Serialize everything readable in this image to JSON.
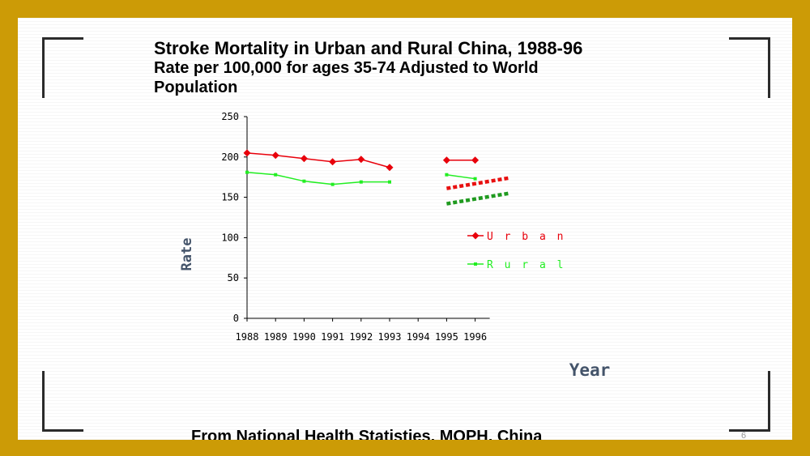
{
  "title": "Stroke Mortality in Urban and Rural China, 1988-96",
  "subtitle_line1": "Rate per 100,000 for ages 35-74 Adjusted to World",
  "subtitle_line2": "Population",
  "source": "From National Health Statisties, MOPH, China",
  "page_number": "6",
  "colors": {
    "frame": "#cc9b06",
    "urban": "#e8000b",
    "rural": "#22ee22",
    "urban_trend": "#e81010",
    "rural_trend": "#1f9a1f"
  },
  "chart_data": {
    "type": "line",
    "title": "Stroke Mortality in Urban and Rural China, 1988-96",
    "xlabel": "Year",
    "ylabel": "Rate",
    "ylim": [
      0,
      250
    ],
    "yticks": [
      0,
      50,
      100,
      150,
      200,
      250
    ],
    "x": [
      1988,
      1989,
      1990,
      1991,
      1992,
      1993,
      1994,
      1995,
      1996
    ],
    "series": [
      {
        "name": "Urban",
        "legend": "U r b a n",
        "values": [
          205,
          202,
          198,
          194,
          197,
          187,
          null,
          196,
          196
        ]
      },
      {
        "name": "Rural",
        "legend": "R u r a l",
        "values": [
          181,
          178,
          170,
          166,
          169,
          169,
          null,
          178,
          173
        ]
      }
    ],
    "trendlines": [
      {
        "series": "Urban",
        "x": [
          1995,
          1997.2
        ],
        "y": [
          161,
          174
        ]
      },
      {
        "series": "Rural",
        "x": [
          1995,
          1997.2
        ],
        "y": [
          142,
          155
        ]
      }
    ],
    "legend_position": "right"
  }
}
